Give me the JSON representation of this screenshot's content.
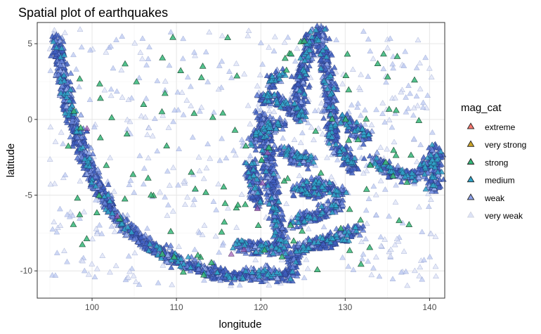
{
  "chart_data": {
    "type": "scatter",
    "title": "Spatial plot of earthquakes",
    "xlabel": "longitude",
    "ylabel": "latitude",
    "xlim": [
      93.5,
      141.8
    ],
    "ylim": [
      -11.8,
      6.4
    ],
    "x_ticks": [
      100,
      110,
      120,
      130,
      140
    ],
    "y_ticks": [
      5,
      0,
      -5,
      -10
    ],
    "grid": true,
    "marker": "triangle",
    "legend": {
      "title": "mag_cat",
      "position": "right",
      "items": [
        {
          "label": "extreme",
          "color": "#f8766d"
        },
        {
          "label": "very strong",
          "color": "#c9a227"
        },
        {
          "label": "strong",
          "color": "#35b779"
        },
        {
          "label": "medium",
          "color": "#2fa4c8"
        },
        {
          "label": "weak",
          "color": "#8da0e8"
        },
        {
          "label": "very weak",
          "color": "#dde3f7"
        }
      ]
    },
    "series": [
      {
        "name": "weak",
        "color": "#5b79d8",
        "density_paths": [
          [
            [
              95.8,
              5.5
            ],
            [
              96.2,
              4.0
            ],
            [
              96.6,
              2.5
            ],
            [
              97.2,
              1.0
            ],
            [
              97.9,
              -0.5
            ],
            [
              98.8,
              -2.0
            ],
            [
              100.0,
              -3.6
            ],
            [
              101.5,
              -5.2
            ],
            [
              103.2,
              -6.6
            ],
            [
              105.0,
              -7.6
            ],
            [
              107.0,
              -8.4
            ],
            [
              109.0,
              -9.0
            ],
            [
              111.0,
              -9.5
            ],
            [
              113.0,
              -9.9
            ],
            [
              115.0,
              -10.2
            ],
            [
              117.0,
              -10.4
            ],
            [
              119.0,
              -10.3
            ],
            [
              121.0,
              -10.2
            ],
            [
              123.0,
              -10.3
            ]
          ],
          [
            [
              123.5,
              -10.4
            ],
            [
              124.0,
              -9.0
            ],
            [
              124.6,
              -8.5
            ],
            [
              126.0,
              -8.3
            ],
            [
              128.0,
              -8.0
            ],
            [
              130.0,
              -7.6
            ],
            [
              131.5,
              -7.2
            ]
          ],
          [
            [
              124.0,
              -6.8
            ],
            [
              126.0,
              -6.4
            ],
            [
              128.0,
              -6.0
            ],
            [
              129.5,
              -5.5
            ]
          ],
          [
            [
              120.2,
              0.3
            ],
            [
              120.8,
              -2.0
            ],
            [
              121.2,
              -4.0
            ],
            [
              121.6,
              -5.8
            ],
            [
              122.0,
              -7.2
            ],
            [
              122.6,
              -8.4
            ]
          ],
          [
            [
              118.8,
              -3.0
            ],
            [
              119.2,
              -4.2
            ],
            [
              119.6,
              -5.6
            ]
          ],
          [
            [
              119.0,
              -1.5
            ],
            [
              119.6,
              -1.0
            ],
            [
              120.4,
              -0.6
            ],
            [
              121.5,
              -0.4
            ],
            [
              122.8,
              -0.2
            ]
          ],
          [
            [
              120.0,
              1.2
            ],
            [
              121.2,
              1.6
            ],
            [
              122.6,
              1.0
            ],
            [
              124.0,
              0.6
            ],
            [
              125.0,
              0.3
            ]
          ],
          [
            [
              121.2,
              2.4
            ],
            [
              122.3,
              3.0
            ]
          ],
          [
            [
              124.4,
              0.0
            ],
            [
              124.6,
              1.8
            ],
            [
              125.0,
              3.4
            ],
            [
              125.6,
              4.6
            ],
            [
              126.3,
              5.8
            ]
          ],
          [
            [
              126.8,
              6.0
            ],
            [
              127.4,
              4.6
            ],
            [
              127.9,
              3.0
            ],
            [
              128.3,
              1.4
            ],
            [
              128.4,
              0.0
            ],
            [
              128.6,
              -1.4
            ]
          ],
          [
            [
              122.6,
              -2.0
            ],
            [
              123.6,
              -2.4
            ],
            [
              124.8,
              -2.6
            ],
            [
              126.0,
              -2.7
            ]
          ],
          [
            [
              124.2,
              -4.6
            ],
            [
              125.6,
              -4.8
            ],
            [
              127.2,
              -5.0
            ]
          ],
          [
            [
              126.0,
              -4.2
            ],
            [
              127.4,
              -4.4
            ],
            [
              128.6,
              -4.6
            ],
            [
              129.5,
              -4.9
            ]
          ],
          [
            [
              129.0,
              -1.8
            ],
            [
              130.2,
              -2.4
            ],
            [
              131.0,
              -3.4
            ]
          ],
          [
            [
              129.8,
              0.1
            ],
            [
              130.8,
              -0.5
            ],
            [
              131.8,
              -0.8
            ],
            [
              132.6,
              -1.2
            ]
          ],
          [
            [
              133.2,
              -2.6
            ],
            [
              134.2,
              -3.0
            ],
            [
              135.2,
              -3.3
            ],
            [
              136.4,
              -3.6
            ],
            [
              137.6,
              -3.8
            ],
            [
              138.8,
              -3.4
            ],
            [
              139.8,
              -3.0
            ],
            [
              140.8,
              -2.8
            ]
          ],
          [
            [
              140.6,
              -1.8
            ],
            [
              140.8,
              -3.2
            ],
            [
              140.4,
              -4.6
            ]
          ],
          [
            [
              117.2,
              -8.3
            ],
            [
              118.6,
              -8.4
            ],
            [
              120.0,
              -8.5
            ],
            [
              121.6,
              -8.6
            ],
            [
              123.0,
              -8.6
            ]
          ]
        ]
      }
    ]
  }
}
